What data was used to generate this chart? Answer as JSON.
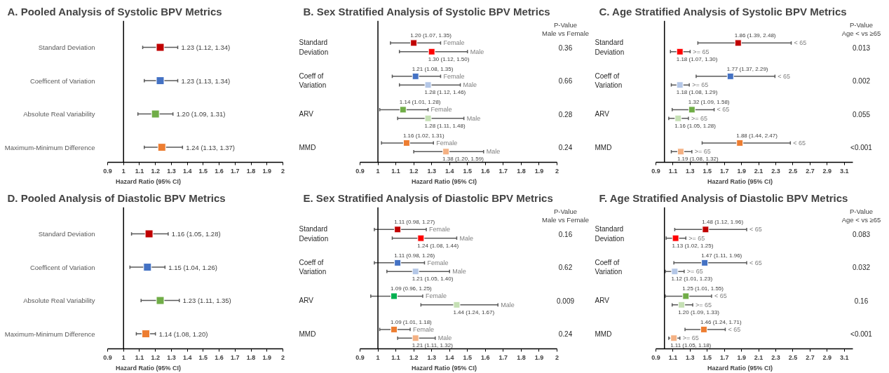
{
  "chart_data": [
    {
      "type": "scatter",
      "orientation": "horizontal",
      "title": "A. Pooled Analysis of Systolic BPV Metrics",
      "xlabel": "Hazard Ratio (95% CI)",
      "marker": "square",
      "xlim": [
        0.9,
        2
      ],
      "xticks": [
        0.9,
        1,
        1.1,
        1.2,
        1.3,
        1.4,
        1.5,
        1.6,
        1.7,
        1.8,
        1.9,
        2
      ],
      "ref_lines": [
        {
          "axis": "x",
          "value": 1,
          "color": "#000000"
        }
      ],
      "categories": [
        "Standard Deviation",
        "Coefficent of Variation",
        "Absolute Real Variability",
        "Maximum-Minimum Difference"
      ],
      "series": [
        {
          "colors": [
            "#c00000",
            "#4472c4",
            "#70ad47",
            "#ed7d31"
          ],
          "values": [
            1.23,
            1.23,
            1.2,
            1.24
          ],
          "errors": [
            [
              1.12,
              1.34
            ],
            [
              1.13,
              1.34
            ],
            [
              1.09,
              1.31
            ],
            [
              1.13,
              1.37
            ]
          ],
          "value_labels": [
            "1.23 (1.12, 1.34)",
            "1.23 (1.13, 1.34)",
            "1.20 (1.09, 1.31)",
            "1.24 (1.13, 1.37)"
          ]
        }
      ]
    },
    {
      "type": "scatter",
      "orientation": "horizontal",
      "title": "B. Sex Stratified Analysis of Systolic BPV Metrics",
      "xlabel": "Hazard Ratio (95% CI)",
      "marker": "square",
      "xlim": [
        0.9,
        2
      ],
      "xticks": [
        0.9,
        1,
        1.1,
        1.2,
        1.3,
        1.4,
        1.5,
        1.6,
        1.7,
        1.8,
        1.9,
        2
      ],
      "ref_lines": [
        {
          "axis": "x",
          "value": 1,
          "color": "#000000"
        }
      ],
      "categories": [
        "Standard Deviation",
        "Coeff of Variation",
        "ARV",
        "MMD"
      ],
      "series": [
        {
          "name": "Female",
          "colors": [
            "#c00000",
            "#4472c4",
            "#70ad47",
            "#ed7d31"
          ],
          "values": [
            1.2,
            1.21,
            1.14,
            1.16
          ],
          "errors": [
            [
              1.07,
              1.35
            ],
            [
              1.08,
              1.35
            ],
            [
              1.01,
              1.28
            ],
            [
              1.02,
              1.31
            ]
          ],
          "value_labels": [
            "1.20 (1.07, 1.35)",
            "1.21 (1.08, 1.35)",
            "1.14 (1.01, 1.28)",
            "1.16 (1.02, 1.31)"
          ]
        },
        {
          "name": "Male",
          "colors": [
            "#ff0000",
            "#b4c7e7",
            "#c5e0b4",
            "#f4b183"
          ],
          "values": [
            1.3,
            1.28,
            1.28,
            1.38
          ],
          "errors": [
            [
              1.12,
              1.5
            ],
            [
              1.12,
              1.46
            ],
            [
              1.11,
              1.48
            ],
            [
              1.2,
              1.59
            ]
          ],
          "value_labels": [
            "1.30 (1.12, 1.50)",
            "1.28 (1.12, 1.46)",
            "1.28 (1.11, 1.48)",
            "1.38 (1.20, 1.59)"
          ]
        }
      ],
      "annotations": [
        "P-Value",
        "Male vs Female",
        "0.36",
        "0.66",
        "0.28",
        "0.24"
      ]
    },
    {
      "type": "scatter",
      "orientation": "horizontal",
      "title": "C. Age Stratified Analysis of Systolic BPV Metrics",
      "xlabel": "Hazard Ratio (95% CI)",
      "marker": "square",
      "xlim": [
        0.9,
        3.2
      ],
      "xticks": [
        0.9,
        1.1,
        1.3,
        1.5,
        1.7,
        1.9,
        2.1,
        2.3,
        2.5,
        2.7,
        2.9,
        3.1
      ],
      "ref_lines": [
        {
          "axis": "x",
          "value": 1,
          "color": "#000000"
        }
      ],
      "categories": [
        "Standard Deviation",
        "Coeff of Variation",
        "ARV",
        "MMD"
      ],
      "series": [
        {
          "name": "< 65",
          "colors": [
            "#c00000",
            "#4472c4",
            "#70ad47",
            "#ed7d31"
          ],
          "values": [
            1.86,
            1.77,
            1.32,
            1.88
          ],
          "errors": [
            [
              1.39,
              2.48
            ],
            [
              1.37,
              2.29
            ],
            [
              1.09,
              1.58
            ],
            [
              1.44,
              2.47
            ]
          ],
          "value_labels": [
            "1.86 (1.39,  2.48)",
            "1.77 (1.37,  2.29)",
            "1.32 (1.09,  1.58)",
            "1.88 (1.44,  2.47)"
          ]
        },
        {
          "name": ">= 65",
          "colors": [
            "#ff0000",
            "#b4c7e7",
            "#c5e0b4",
            "#f4b183"
          ],
          "values": [
            1.18,
            1.18,
            1.16,
            1.19
          ],
          "errors": [
            [
              1.07,
              1.3
            ],
            [
              1.08,
              1.29
            ],
            [
              1.05,
              1.28
            ],
            [
              1.08,
              1.32
            ]
          ],
          "value_labels": [
            "1.18 (1.07, 1.30)",
            "1.18 (1.08, 1.29)",
            "1.16 (1.05, 1.28)",
            "1.19 (1.08, 1.32)"
          ]
        }
      ],
      "annotations": [
        "P-Value",
        "Age < vs ≥65",
        "0.013",
        "0.002",
        "0.055",
        "<0.001"
      ]
    },
    {
      "type": "scatter",
      "orientation": "horizontal",
      "title": "D. Pooled Analysis of Diastolic BPV Metrics",
      "xlabel": "Hazard Ratio (95% CI)",
      "marker": "square",
      "xlim": [
        0.9,
        2
      ],
      "xticks": [
        0.9,
        1,
        1.1,
        1.2,
        1.3,
        1.4,
        1.5,
        1.6,
        1.7,
        1.8,
        1.9,
        2
      ],
      "ref_lines": [
        {
          "axis": "x",
          "value": 1,
          "color": "#000000"
        }
      ],
      "categories": [
        "Standard Deviation",
        "Coefficent of Variation",
        "Absolute Real Variability",
        "Maximum-Minimum Difference"
      ],
      "series": [
        {
          "colors": [
            "#c00000",
            "#4472c4",
            "#70ad47",
            "#ed7d31"
          ],
          "values": [
            1.16,
            1.15,
            1.23,
            1.14
          ],
          "errors": [
            [
              1.05,
              1.28
            ],
            [
              1.04,
              1.26
            ],
            [
              1.11,
              1.35
            ],
            [
              1.08,
              1.2
            ]
          ],
          "value_labels": [
            "1.16 (1.05, 1.28)",
            "1.15 (1.04, 1.26)",
            "1.23 (1.11, 1.35)",
            "1.14 (1.08, 1.20)"
          ]
        }
      ]
    },
    {
      "type": "scatter",
      "orientation": "horizontal",
      "title": "E. Sex Stratified Analysis of Diastolic BPV Metrics",
      "xlabel": "Hazard Ratio (95% CI)",
      "marker": "square",
      "xlim": [
        0.9,
        2
      ],
      "xticks": [
        0.9,
        1,
        1.1,
        1.2,
        1.3,
        1.4,
        1.5,
        1.6,
        1.7,
        1.8,
        1.9,
        2
      ],
      "ref_lines": [
        {
          "axis": "x",
          "value": 1,
          "color": "#000000"
        }
      ],
      "categories": [
        "Standard Deviation",
        "Coeff of Variation",
        "ARV",
        "MMD"
      ],
      "series": [
        {
          "name": "Female",
          "colors": [
            "#c00000",
            "#4472c4",
            "#00b050",
            "#ed7d31"
          ],
          "values": [
            1.11,
            1.11,
            1.09,
            1.09
          ],
          "errors": [
            [
              0.98,
              1.27
            ],
            [
              0.98,
              1.26
            ],
            [
              0.96,
              1.25
            ],
            [
              1.01,
              1.18
            ]
          ],
          "value_labels": [
            "1.11 (0.98, 1.27)",
            "1.11 (0.98, 1.26)",
            "1.09 (0.96, 1.25)",
            "1.09 (1.01, 1.18)"
          ]
        },
        {
          "name": "Male",
          "colors": [
            "#ff0000",
            "#b4c7e7",
            "#c5e0b4",
            "#f4b183"
          ],
          "values": [
            1.24,
            1.21,
            1.44,
            1.21
          ],
          "errors": [
            [
              1.08,
              1.44
            ],
            [
              1.05,
              1.4
            ],
            [
              1.24,
              1.67
            ],
            [
              1.11,
              1.32
            ]
          ],
          "value_labels": [
            "1.24 (1.08, 1.44)",
            "1.21 (1.05, 1.40)",
            "1.44 (1.24, 1.67)",
            "1.21 (1.11, 1.32)"
          ]
        }
      ],
      "annotations": [
        "P-Value",
        "Male vs Female",
        "0.16",
        "0.62",
        "0.009",
        "0.24"
      ]
    },
    {
      "type": "scatter",
      "orientation": "horizontal",
      "title": "F. Age Stratified Analysis of Diastolic BPV Metrics",
      "xlabel": "Hazard Ratio (95% CI)",
      "marker": "square",
      "xlim": [
        0.9,
        3.2
      ],
      "xticks": [
        0.9,
        1.1,
        1.3,
        1.5,
        1.7,
        1.9,
        2.1,
        2.3,
        2.5,
        2.7,
        2.9,
        3.1
      ],
      "ref_lines": [
        {
          "axis": "x",
          "value": 1,
          "color": "#000000"
        }
      ],
      "categories": [
        "Standard Deviation",
        "Coeff of Variation",
        "ARV",
        "MMD"
      ],
      "series": [
        {
          "name": "< 65",
          "colors": [
            "#c00000",
            "#4472c4",
            "#70ad47",
            "#ed7d31"
          ],
          "values": [
            1.48,
            1.47,
            1.25,
            1.46
          ],
          "errors": [
            [
              1.12,
              1.96
            ],
            [
              1.11,
              1.96
            ],
            [
              1.01,
              1.55
            ],
            [
              1.24,
              1.71
            ]
          ],
          "value_labels": [
            "1.48 (1.12,  1.96)",
            "1.47 (1.11,  1.96)",
            "1.25 (1.01,  1.55)",
            "1.46 (1.24,  1.71)"
          ]
        },
        {
          "name": ">= 65",
          "colors": [
            "#ff0000",
            "#b4c7e7",
            "#c5e0b4",
            "#f4b183"
          ],
          "values": [
            1.13,
            1.12,
            1.2,
            1.11
          ],
          "errors": [
            [
              1.02,
              1.25
            ],
            [
              1.01,
              1.23
            ],
            [
              1.09,
              1.33
            ],
            [
              1.05,
              1.18
            ]
          ],
          "value_labels": [
            "1.13 (1.02, 1.25)",
            "1.12 (1.01, 1.23)",
            "1.20 (1.09, 1.33)",
            "1.11 (1.05, 1.18)"
          ]
        }
      ],
      "annotations": [
        "P-Value",
        "Age < vs ≥65",
        "0.083",
        "0.032",
        "0.16",
        "<0.001"
      ]
    }
  ]
}
